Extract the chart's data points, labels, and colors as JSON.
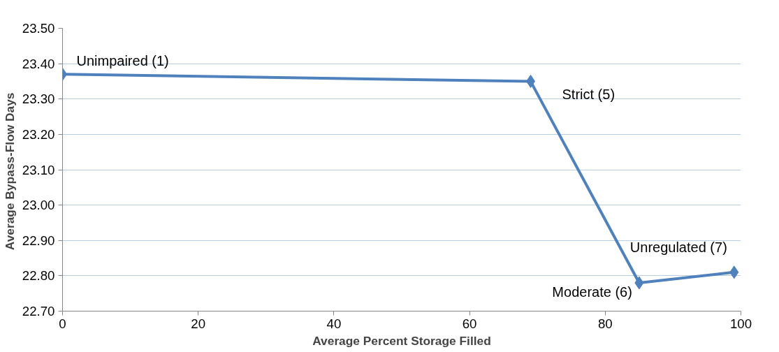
{
  "chart_data": {
    "type": "line",
    "xlabel": "Average Percent Storage Filled",
    "ylabel": "Average Bypass-Flow  Days",
    "x": [
      0,
      69,
      85,
      99
    ],
    "series": [
      {
        "color": "#4f81bd",
        "values": [
          23.37,
          23.35,
          22.78,
          22.81
        ]
      }
    ],
    "xlim": [
      0,
      100
    ],
    "xticks": [
      0,
      20,
      40,
      60,
      80,
      100
    ],
    "ylim": [
      22.7,
      23.5
    ],
    "yticks": [
      {
        "value": 22.7,
        "label": "22.70"
      },
      {
        "value": 22.8,
        "label": "22.80"
      },
      {
        "value": 22.9,
        "label": "22.90"
      },
      {
        "value": 23.0,
        "label": "23.00"
      },
      {
        "value": 23.1,
        "label": "23.10"
      },
      {
        "value": 23.2,
        "label": "23.20"
      },
      {
        "value": 23.3,
        "label": "23.30"
      },
      {
        "value": 23.4,
        "label": "23.40"
      },
      {
        "value": 23.5,
        "label": "23.50"
      }
    ],
    "grid": "y",
    "marker": "diamond",
    "line_style": "solid",
    "annotations": [
      {
        "text": "Unimpaired (1)",
        "x": 0,
        "y": 23.37
      },
      {
        "text": "Strict (5)",
        "x": 69,
        "y": 23.35
      },
      {
        "text": "Moderate (6)",
        "x": 85,
        "y": 22.78
      },
      {
        "text": "Unregulated (7)",
        "x": 99,
        "y": 22.81
      }
    ]
  }
}
